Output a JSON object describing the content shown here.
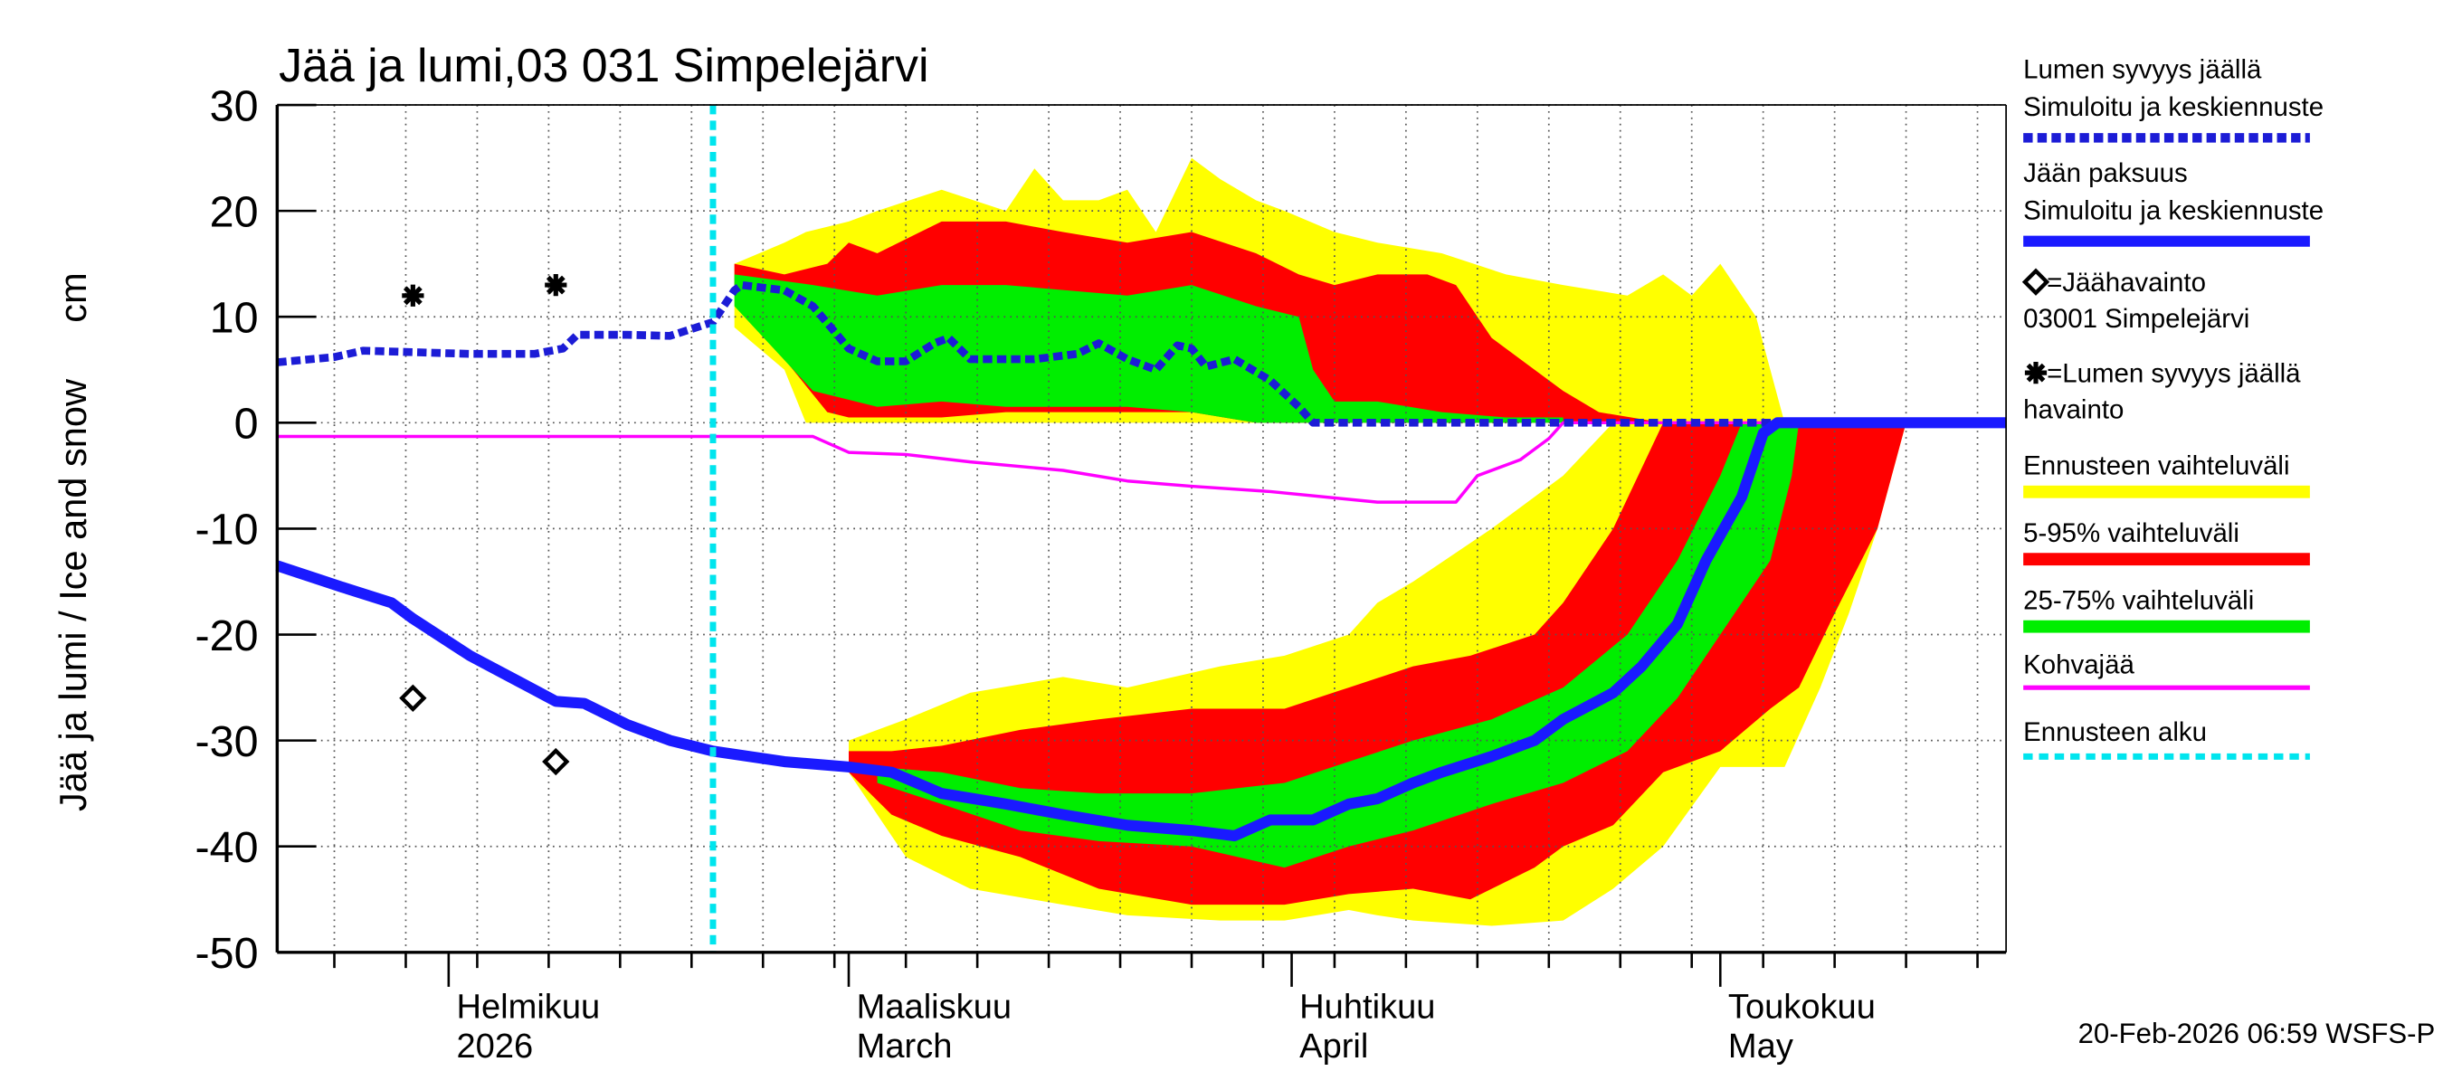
{
  "chart_data": {
    "type": "line",
    "title": "Jää ja lumi,03 031 Simpelejärvi",
    "ylabel": "Jää ja lumi / Ice and snow",
    "yunit": "cm",
    "footer": "20-Feb-2026 06:59 WSFS-P",
    "xlim": [
      20,
      141
    ],
    "ylim": [
      -50,
      30
    ],
    "yticks": [
      -50,
      -40,
      -30,
      -20,
      -10,
      0,
      10,
      20,
      30
    ],
    "xticks": [
      {
        "value": 32,
        "label": [
          "Helmikuu",
          "2026"
        ]
      },
      {
        "value": 60,
        "label": [
          "Maaliskuu",
          "March"
        ]
      },
      {
        "value": 91,
        "label": [
          "Huhtikuu",
          "April"
        ]
      },
      {
        "value": 121,
        "label": [
          "Toukokuu",
          "May"
        ]
      }
    ],
    "xgrid": [
      24,
      29,
      34,
      39,
      44,
      49,
      54,
      59,
      64,
      69,
      74,
      79,
      84,
      89,
      94,
      99,
      104,
      109,
      114,
      119,
      124,
      129,
      134,
      139
    ],
    "grid": true,
    "bands": [
      {
        "name": "Ennusteen vaihteluväli",
        "color": "#ffff00",
        "areas": [
          {
            "x": [
              52,
              55.5,
              57,
              60,
              62,
              66.5,
              71,
              73,
              75,
              77.5,
              79.5,
              81.5,
              84,
              86,
              88.5,
              90.5,
              94,
              97,
              101.5,
              106,
              110,
              114.5,
              117,
              119,
              121,
              123.5,
              124.5,
              125.5
            ],
            "high": [
              15,
              17,
              18,
              19,
              20,
              22,
              20,
              24,
              21,
              21,
              22,
              18,
              25,
              23,
              21,
              20,
              18,
              17,
              16,
              14,
              13,
              12,
              14,
              12,
              15,
              10,
              5,
              0
            ],
            "low": [
              9,
              5,
              0,
              0,
              0,
              0,
              0,
              0,
              0,
              0,
              0,
              0,
              0,
              0,
              0,
              0,
              0,
              0,
              0,
              0,
              0,
              0,
              0,
              0,
              0,
              0,
              0,
              0
            ]
          },
          {
            "x": [
              60,
              64,
              68.5,
              75,
              79.5,
              86,
              90.5,
              95,
              97,
              99.5,
              105,
              110,
              113.5,
              117,
              121,
              125.5,
              128,
              130,
              132,
              134
            ],
            "high": [
              -30,
              -28,
              -25.5,
              -24,
              -25,
              -23,
              -22,
              -20,
              -17,
              -15,
              -10,
              -5,
              0,
              0,
              0,
              0,
              0,
              0,
              0,
              0
            ],
            "low": [
              -33,
              -41,
              -44,
              -45.5,
              -46.5,
              -47,
              -47,
              -46,
              -46.5,
              -47,
              -47.5,
              -47,
              -44,
              -40,
              -32.5,
              -32.5,
              -25,
              -18,
              -10,
              0
            ]
          }
        ]
      },
      {
        "name": "5-95% vaihteluväli",
        "color": "#ff0000",
        "areas": [
          {
            "x": [
              52,
              55.5,
              58.5,
              60,
              62,
              66.5,
              71,
              75,
              79.5,
              84,
              88.5,
              91.5,
              94,
              97,
              100.5,
              102.5,
              105,
              108,
              110,
              112.5,
              117
            ],
            "high": [
              15,
              14,
              15,
              17,
              16,
              19,
              19,
              18,
              17,
              18,
              16,
              14,
              13,
              14,
              14,
              13,
              8,
              5,
              3,
              1,
              0
            ],
            "low": [
              12,
              6,
              1,
              0.5,
              0.5,
              0.5,
              1,
              1,
              1,
              1,
              0,
              0,
              0,
              0,
              0,
              0,
              0,
              0,
              0,
              0,
              0
            ]
          },
          {
            "x": [
              60,
              63,
              66.5,
              72,
              77.5,
              84,
              90.5,
              95,
              99.5,
              103.5,
              108,
              110,
              113.5,
              117,
              121,
              124.5,
              126.5,
              129,
              132,
              134
            ],
            "high": [
              -31,
              -31,
              -30.5,
              -29,
              -28,
              -27,
              -27,
              -25,
              -23,
              -22,
              -20,
              -17,
              -10,
              0,
              0,
              0,
              0,
              0,
              0,
              0
            ],
            "low": [
              -33,
              -37,
              -39,
              -41,
              -44,
              -45.5,
              -45.5,
              -44.5,
              -44,
              -45,
              -42,
              -40,
              -38,
              -33,
              -31,
              -27,
              -25,
              -18,
              -10,
              0
            ]
          }
        ]
      },
      {
        "name": "25-75% vaihteluväli",
        "color": "#00ee00",
        "areas": [
          {
            "x": [
              52,
              57.5,
              62,
              66.5,
              71,
              79.5,
              84,
              88.5,
              91.5,
              92.5,
              94,
              97,
              101.5,
              106,
              110
            ],
            "high": [
              14,
              13,
              12,
              13,
              13,
              12,
              13,
              11,
              10,
              5,
              2,
              2,
              1,
              0.5,
              0.5
            ],
            "low": [
              11,
              3,
              1.5,
              2,
              1.5,
              1.5,
              1,
              0,
              0,
              0,
              0,
              0,
              0,
              0,
              0
            ]
          },
          {
            "x": [
              62,
              66.5,
              72,
              77.5,
              84,
              90.5,
              95,
              99.5,
              105,
              110,
              114.5,
              118,
              121,
              122.5,
              124.5,
              126,
              126.5
            ],
            "high": [
              -32.5,
              -33,
              -34.5,
              -35,
              -35,
              -34,
              -32,
              -30,
              -28,
              -25,
              -20,
              -13,
              -5,
              0,
              0,
              0,
              0
            ],
            "low": [
              -34,
              -36,
              -38.5,
              -39.5,
              -40,
              -42,
              -40,
              -38.5,
              -36,
              -34,
              -31,
              -26,
              -20,
              -17,
              -13,
              -5,
              0
            ]
          }
        ]
      }
    ],
    "series": [
      {
        "name": [
          "Kohvajää"
        ],
        "color": "#ff00ff",
        "dash": false,
        "width": 2,
        "x": [
          20,
          57.5,
          60,
          64,
          68.5,
          75,
          79.5,
          84,
          89.5,
          97,
          102.5,
          104,
          107,
          109,
          110,
          141
        ],
        "values": [
          -1.3,
          -1.3,
          -2.8,
          -3,
          -3.7,
          -4.5,
          -5.5,
          -6,
          -6.5,
          -7.5,
          -7.5,
          -5,
          -3.5,
          -1.5,
          0,
          0
        ]
      },
      {
        "name": [
          "Lumen syvyys jäällä",
          "Simuloitu ja keskiennuste"
        ],
        "color": "#1c1cd6",
        "dash": true,
        "width": 5,
        "x": [
          20,
          24,
          26,
          33.5,
          38,
          40,
          41,
          44.5,
          47.5,
          50.5,
          52,
          52.5,
          55.5,
          57.5,
          60,
          62,
          64,
          66,
          67,
          68.5,
          73,
          76,
          77.5,
          79.5,
          81.5,
          83,
          84,
          85,
          87,
          89.5,
          91.5,
          92.5,
          141
        ],
        "values": [
          5.7,
          6.2,
          6.8,
          6.5,
          6.5,
          7,
          8.3,
          8.3,
          8.2,
          9.5,
          12.5,
          13,
          12.5,
          11,
          7,
          5.8,
          5.8,
          7.5,
          8,
          6,
          6,
          6.5,
          7.5,
          6,
          5,
          7.3,
          7,
          5.3,
          6,
          4,
          1.5,
          0,
          0
        ]
      },
      {
        "name": [
          "Jään paksuus",
          "Simuloitu ja keskiennuste"
        ],
        "color": "#1a1aff",
        "dash": false,
        "width": 7,
        "x": [
          20,
          24.5,
          28,
          29.5,
          33.5,
          37,
          39.5,
          41.5,
          44.5,
          47.5,
          50.5,
          55.5,
          60,
          63,
          66.5,
          71,
          75,
          79.5,
          84,
          87,
          89.5,
          92.5,
          95,
          97,
          99.5,
          101.5,
          105,
          108,
          110,
          113.5,
          115.5,
          118,
          120,
          122.5,
          124,
          125,
          141
        ],
        "values": [
          -13.5,
          -15.5,
          -17,
          -18.5,
          -22,
          -24.5,
          -26.3,
          -26.5,
          -28.5,
          -30,
          -31,
          -32,
          -32.5,
          -33,
          -35,
          -36,
          -37,
          -38,
          -38.5,
          -39,
          -37.5,
          -37.5,
          -36,
          -35.5,
          -34,
          -33,
          -31.5,
          -30,
          -28,
          -25.5,
          -23,
          -19,
          -13,
          -7,
          -1,
          0,
          0
        ]
      }
    ],
    "observations": [
      {
        "name": [
          "=Jäähavainto",
          "03001 Simpelejärvi"
        ],
        "marker": "diamond",
        "x": [
          29.5,
          39.5
        ],
        "values": [
          -26,
          -32
        ]
      },
      {
        "name": [
          "=Lumen syvyys jäällä",
          "havainto"
        ],
        "marker": "asterisk",
        "x": [
          29.5,
          39.5
        ],
        "values": [
          12,
          13
        ]
      }
    ],
    "forecast_start": {
      "name": "Ennusteen alku",
      "x": 50.5,
      "color": "#00e5ee"
    }
  }
}
